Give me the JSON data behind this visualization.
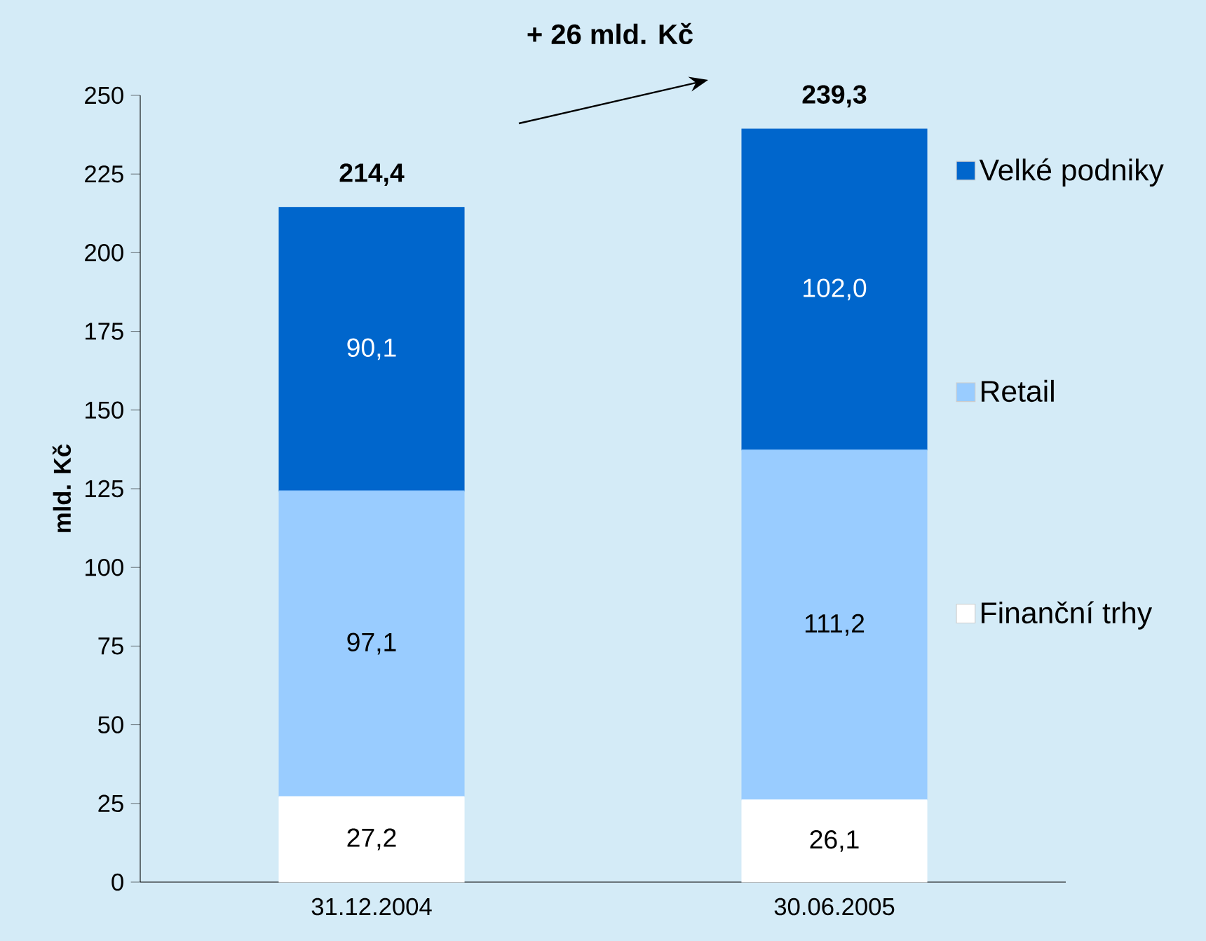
{
  "chart_data": {
    "type": "bar",
    "stacked": true,
    "ylabel": "mld. Kč",
    "categories": [
      "31.12.2004",
      "30.06.2005"
    ],
    "series": [
      {
        "name": "Finanční trhy",
        "color": "#ffffff",
        "values": [
          27.2,
          26.1
        ],
        "value_labels": [
          "27,2",
          "26,1"
        ]
      },
      {
        "name": "Retail",
        "color": "#99ccff",
        "values": [
          97.1,
          111.2
        ],
        "value_labels": [
          "97,1",
          "111,2"
        ]
      },
      {
        "name": "Velké podniky",
        "color": "#0066cc",
        "values": [
          90.1,
          102.0
        ],
        "value_labels": [
          "90,1",
          "102,0"
        ]
      }
    ],
    "totals": [
      "214,4",
      "239,3"
    ],
    "annotations": [
      "+ 26 mld. Kč"
    ],
    "ylim": [
      0,
      250
    ],
    "yticks": [
      0,
      25,
      50,
      75,
      100,
      125,
      150,
      175,
      200,
      225,
      250
    ],
    "grid": false,
    "legend": "right"
  }
}
